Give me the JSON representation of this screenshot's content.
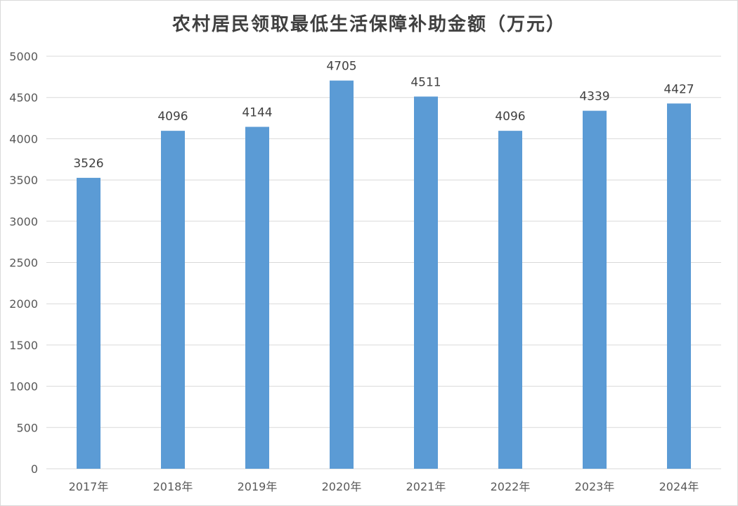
{
  "chart_data": {
    "type": "bar",
    "title": "农村居民领取最低生活保障补助金额（万元）",
    "categories": [
      "2017年",
      "2018年",
      "2019年",
      "2020年",
      "2021年",
      "2022年",
      "2023年",
      "2024年"
    ],
    "values": [
      3526,
      4096,
      4144,
      4705,
      4511,
      4096,
      4339,
      4427
    ],
    "ylim": [
      0,
      5000
    ],
    "yticks": [
      0,
      500,
      1000,
      1500,
      2000,
      2500,
      3000,
      3500,
      4000,
      4500,
      5000
    ],
    "grid": true,
    "legend": "none",
    "bar_color": "#5b9bd5",
    "grid_color": "#d9d9d9"
  }
}
